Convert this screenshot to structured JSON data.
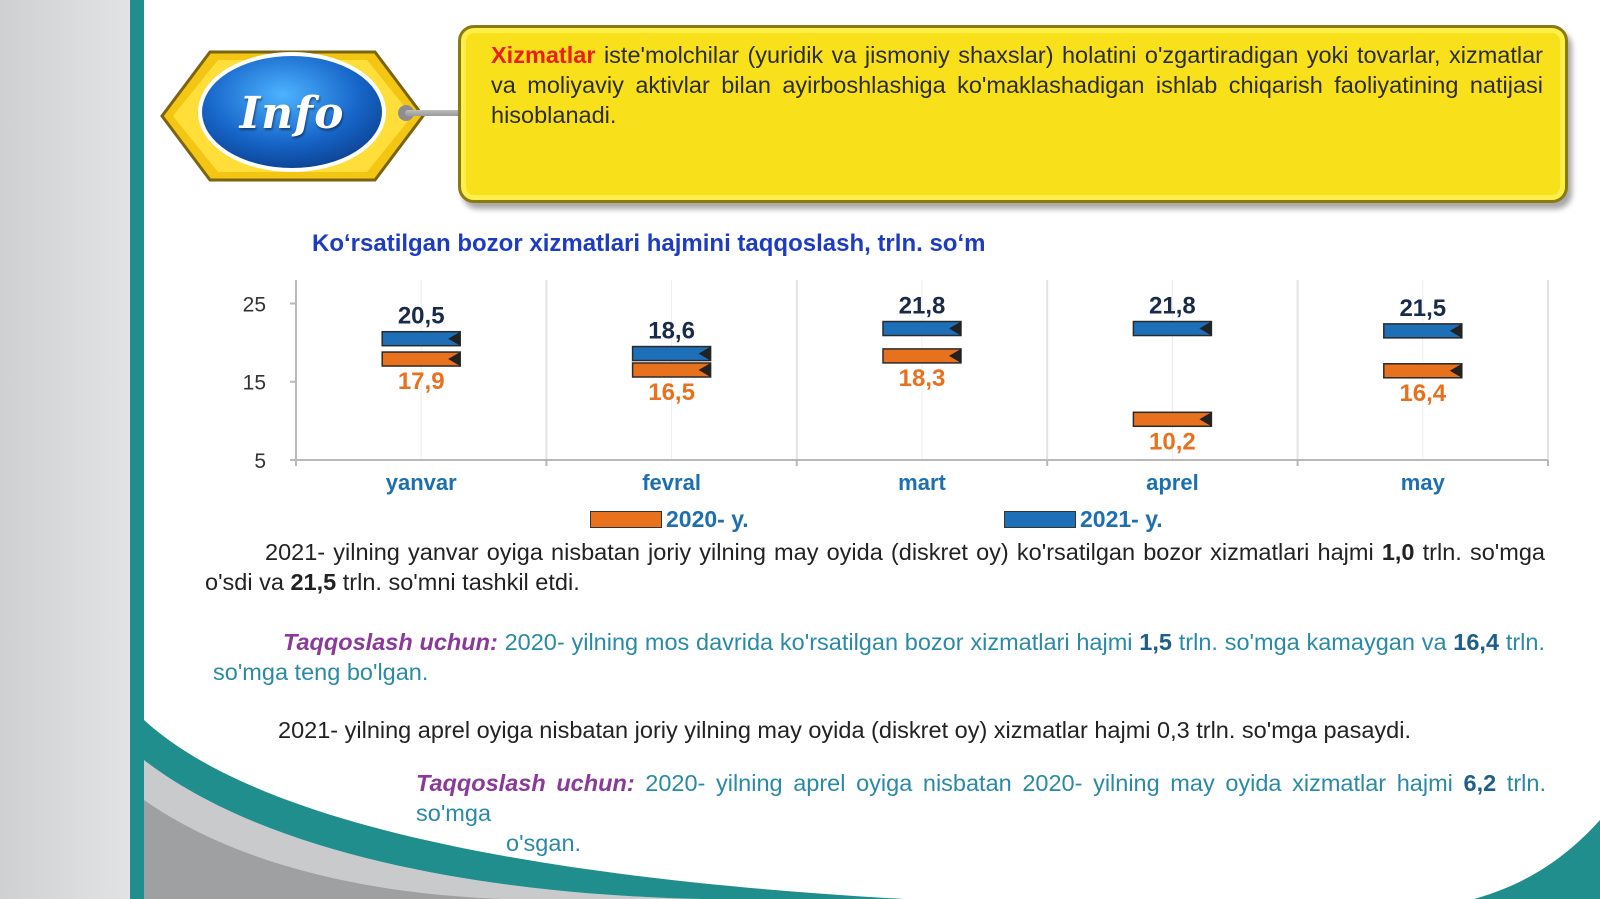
{
  "info": {
    "badge_label": "Info",
    "highlight": "Xizmatlar",
    "definition": "iste'molchilar (yuridik va jismoniy shaxslar) holatini o'zgartiradigan yoki tovarlar, xizmatlar va moliyaviy aktivlar bilan ayirboshlashiga ko'maklashadigan ishlab chiqarish faoliyatining natijasi hisoblanadi."
  },
  "chart_data": {
    "type": "bar",
    "title": "Koʻrsatilgan bozor xizmatlari hajmini taqqoslash, trln. soʻm",
    "categories": [
      "yanvar",
      "fevral",
      "mart",
      "aprel",
      "may"
    ],
    "series": [
      {
        "name": "2020- y.",
        "values": [
          17.9,
          16.5,
          18.3,
          10.2,
          16.4
        ],
        "labels": [
          "17,9",
          "16,5",
          "18,3",
          "10,2",
          "16,4"
        ],
        "color": "#e8711e"
      },
      {
        "name": "2021- y.",
        "values": [
          20.5,
          18.6,
          21.8,
          21.8,
          21.5
        ],
        "labels": [
          "20,5",
          "18,6",
          "21,8",
          "21,8",
          "21,5"
        ],
        "color": "#1d6fb8"
      }
    ],
    "yticks": [
      5,
      15,
      25
    ],
    "ylim": [
      5,
      28
    ],
    "grid": true,
    "legend": "bottom"
  },
  "text": {
    "p1": {
      "a": "2021- yilning yanvar oyiga nisbatan joriy yilning may oyida (diskret oy) ko'rsatilgan bozor xizmatlari hajmi ",
      "n1": "1,0",
      "b": " trln. so'mga o'sdi va ",
      "n2": "21,5",
      "c": " trln. so'mni tashkil etdi."
    },
    "p2": {
      "label": "Taqqoslash uchun:",
      "a": " 2020- yilning mos davrida ko'rsatilgan bozor xizmatlari hajmi ",
      "n1": "1,5",
      "b": " trln. so'mga kamaygan va ",
      "n2": "16,4",
      "c": " trln. so'mga teng bo'lgan."
    },
    "p3": "2021- yilning aprel oyiga nisbatan joriy yilning may oyida (diskret oy) xizmatlar hajmi 0,3 trln. so'mga pasaydi.",
    "p4": {
      "label": "Taqqoslash uchun:",
      "a": " 2020- yilning aprel oyiga nisbatan 2020- yilning may oyida xizmatlar hajmi ",
      "n1": "6,2",
      "b": " trln. so'mga",
      "c": "o'sgan."
    }
  },
  "colors": {
    "teal": "#1f8e8c",
    "yellow_box": "#f8e11a",
    "title_blue": "#1d3cc0",
    "accent_red": "#e8201a"
  }
}
